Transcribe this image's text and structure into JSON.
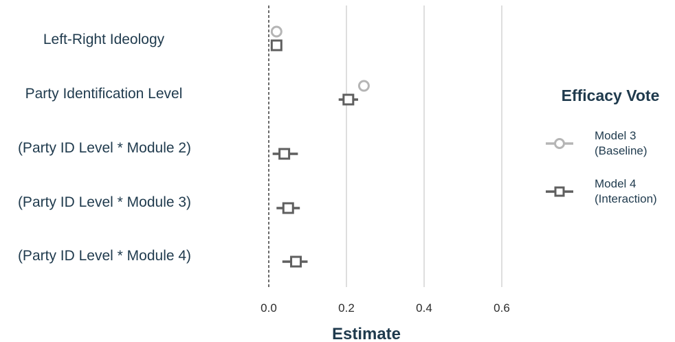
{
  "chart_data": {
    "type": "scatter",
    "xlabel": "Estimate",
    "xticks": [
      0.0,
      0.2,
      0.4,
      0.6
    ],
    "xtick_labels": [
      "0.0",
      "0.2",
      "0.4",
      "0.6"
    ],
    "xlim": [
      -0.05,
      0.75
    ],
    "reference_line": 0.0,
    "grid": "vertical",
    "legend_position": "right",
    "legend_title": "Efficacy Vote",
    "categories": [
      "Left-Right Ideology",
      "Party Identification Level",
      "(Party ID Level * Module 2)",
      "(Party ID Level * Module 3)",
      "(Party ID Level * Module 4)"
    ],
    "series": [
      {
        "name": "Model 3 (Baseline)",
        "legend_lines": [
          "Model 3",
          "(Baseline)"
        ],
        "marker": "circle",
        "color": "#b5b5b5",
        "points": [
          {
            "category": "Left-Right Ideology",
            "estimate": 0.02,
            "ci": [
              0.015,
              0.025
            ]
          },
          {
            "category": "Party Identification Level",
            "estimate": 0.245,
            "ci": [
              0.24,
              0.25
            ]
          }
        ]
      },
      {
        "name": "Model 4 (Interaction)",
        "legend_lines": [
          "Model 4",
          "(Interaction)"
        ],
        "marker": "square",
        "color": "#5f5f5f",
        "points": [
          {
            "category": "Left-Right Ideology",
            "estimate": 0.02,
            "ci": [
              0.015,
              0.025
            ]
          },
          {
            "category": "Party Identification Level",
            "estimate": 0.205,
            "ci": [
              0.18,
              0.23
            ]
          },
          {
            "category": "(Party ID Level * Module 2)",
            "estimate": 0.04,
            "ci": [
              0.01,
              0.075
            ]
          },
          {
            "category": "(Party ID Level * Module 3)",
            "estimate": 0.05,
            "ci": [
              0.02,
              0.08
            ]
          },
          {
            "category": "(Party ID Level * Module 4)",
            "estimate": 0.07,
            "ci": [
              0.035,
              0.1
            ]
          }
        ]
      }
    ]
  }
}
